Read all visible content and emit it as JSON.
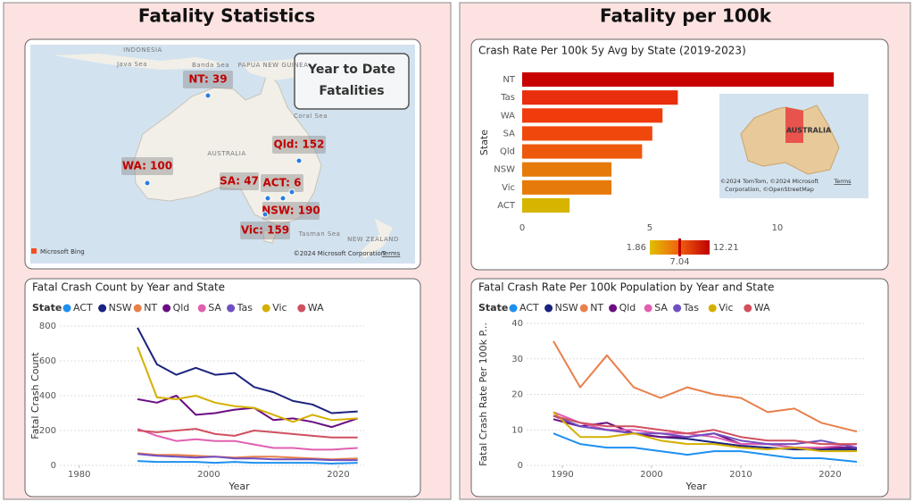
{
  "panels": {
    "left_title": "Fatality Statistics",
    "right_title": "Fatality per 100k"
  },
  "map": {
    "callout": [
      "Year to Date",
      "Fatalities"
    ],
    "bubbles": [
      "NT: 39",
      "Qld: 152",
      "WA: 100",
      "SA: 47",
      "ACT: 6",
      "NSW: 190",
      "Vic: 159"
    ],
    "places": [
      "INDONESIA",
      "Java Sea",
      "Banda Sea",
      "PAPUA NEW GUINEA",
      "AUSTRALIA",
      "Coral Sea",
      "Tasman Sea",
      "NEW ZEALAND"
    ],
    "logo": "Microsoft Bing",
    "attribution": "©2024 Microsoft Corporation",
    "terms": "Terms"
  },
  "inset_map": {
    "label": "AUSTRALIA",
    "attribution": [
      "©2024 TomTom, ©2024 Microsoft",
      "Corporation, ©OpenStreetMap"
    ],
    "terms": "Terms"
  },
  "chart_data": [
    {
      "type": "bar",
      "orientation": "horizontal",
      "title": "Crash Rate Per 100k 5y Avg by State (2019-2023)",
      "categories": [
        "NT",
        "Tas",
        "WA",
        "SA",
        "Qld",
        "NSW",
        "Vic",
        "ACT"
      ],
      "values": [
        12.21,
        6.1,
        5.5,
        5.1,
        4.7,
        3.5,
        3.5,
        1.86
      ],
      "colors": [
        "#c80000",
        "#e82e0c",
        "#f03c0c",
        "#f0480c",
        "#ee580c",
        "#e67a0a",
        "#e67a0a",
        "#d6b400"
      ],
      "ylabel": "State",
      "xlim": [
        0,
        12.8
      ],
      "xticks": [
        0,
        5,
        10
      ],
      "grid": false,
      "color_scale": [
        1.86,
        7.04,
        12.21
      ],
      "scale_colors": [
        "#e0c000",
        "#f06010",
        "#c00000"
      ]
    },
    {
      "type": "line",
      "title": "Fatal Crash Count by Year and State",
      "legend_title": "State",
      "x": [
        1989,
        1992,
        1995,
        1998,
        2001,
        2004,
        2007,
        2010,
        2013,
        2016,
        2019,
        2023
      ],
      "series": [
        {
          "name": "ACT",
          "color": "#1e90f0",
          "values": [
            25,
            20,
            20,
            20,
            15,
            20,
            15,
            15,
            15,
            15,
            10,
            15
          ]
        },
        {
          "name": "NSW",
          "color": "#1a237e",
          "values": [
            790,
            580,
            520,
            560,
            520,
            530,
            450,
            420,
            370,
            350,
            300,
            310
          ]
        },
        {
          "name": "NT",
          "color": "#e8804a",
          "values": [
            70,
            60,
            60,
            55,
            50,
            45,
            50,
            50,
            45,
            40,
            35,
            40
          ]
        },
        {
          "name": "Qld",
          "color": "#6a0d83",
          "values": [
            380,
            360,
            400,
            290,
            300,
            320,
            330,
            260,
            270,
            250,
            220,
            270
          ]
        },
        {
          "name": "SA",
          "color": "#e060b0",
          "values": [
            210,
            170,
            140,
            150,
            140,
            140,
            120,
            100,
            100,
            90,
            90,
            100
          ]
        },
        {
          "name": "Tas",
          "color": "#7050c0",
          "values": [
            65,
            55,
            50,
            45,
            50,
            40,
            40,
            35,
            35,
            35,
            30,
            30
          ]
        },
        {
          "name": "Vic",
          "color": "#d4b000",
          "values": [
            680,
            390,
            380,
            400,
            360,
            340,
            330,
            290,
            250,
            290,
            260,
            270
          ]
        },
        {
          "name": "WA",
          "color": "#d05060",
          "values": [
            200,
            190,
            200,
            210,
            180,
            170,
            200,
            190,
            180,
            170,
            160,
            160
          ]
        }
      ],
      "xlabel": "Year",
      "ylabel": "Fatal Crash Count",
      "xlim": [
        1977,
        2024
      ],
      "xticks": [
        1980,
        2000,
        2020
      ],
      "ylim": [
        0,
        800
      ],
      "yticks": [
        0,
        200,
        400,
        600,
        800
      ],
      "grid": true
    },
    {
      "type": "line",
      "title": "Fatal Crash Rate Per 100k Population by Year and State",
      "legend_title": "State",
      "x": [
        1989,
        1992,
        1995,
        1998,
        2001,
        2004,
        2007,
        2010,
        2013,
        2016,
        2019,
        2023
      ],
      "series": [
        {
          "name": "ACT",
          "color": "#1e90f0",
          "values": [
            9,
            6,
            5,
            5,
            4,
            3,
            4,
            4,
            3,
            2,
            2,
            1
          ]
        },
        {
          "name": "NSW",
          "color": "#1a237e",
          "values": [
            14,
            11,
            10,
            9,
            8,
            7.5,
            6.5,
            5.5,
            5,
            4.5,
            4.5,
            4.5
          ]
        },
        {
          "name": "NT",
          "color": "#e8804a",
          "values": [
            35,
            22,
            31,
            22,
            19,
            22,
            20,
            19,
            15,
            16,
            12,
            9.5
          ]
        },
        {
          "name": "Qld",
          "color": "#6a0d83",
          "values": [
            13,
            11,
            12,
            9,
            8,
            8,
            9,
            6,
            6,
            5,
            5,
            5
          ]
        },
        {
          "name": "SA",
          "color": "#e060b0",
          "values": [
            15,
            12,
            10,
            10,
            9,
            9,
            8,
            6,
            6,
            5,
            5,
            6
          ]
        },
        {
          "name": "Tas",
          "color": "#7050c0",
          "values": [
            14,
            11,
            10,
            9,
            9,
            8,
            9,
            7,
            6,
            6,
            7,
            5
          ]
        },
        {
          "name": "Vic",
          "color": "#d4b000",
          "values": [
            15,
            8,
            8,
            9,
            7,
            6,
            6,
            5,
            4.5,
            5,
            4,
            4
          ]
        },
        {
          "name": "WA",
          "color": "#d05060",
          "values": [
            14,
            12,
            11,
            11,
            10,
            9,
            10,
            8,
            7,
            7,
            6,
            6
          ]
        }
      ],
      "xlabel": "Year",
      "ylabel": "Fatal Crash Rate Per 100k P...",
      "xlim": [
        1986,
        2024
      ],
      "xticks": [
        1990,
        2000,
        2010,
        2020
      ],
      "ylim": [
        0,
        40
      ],
      "yticks": [
        0,
        10,
        20,
        30,
        40
      ],
      "grid": true
    }
  ]
}
